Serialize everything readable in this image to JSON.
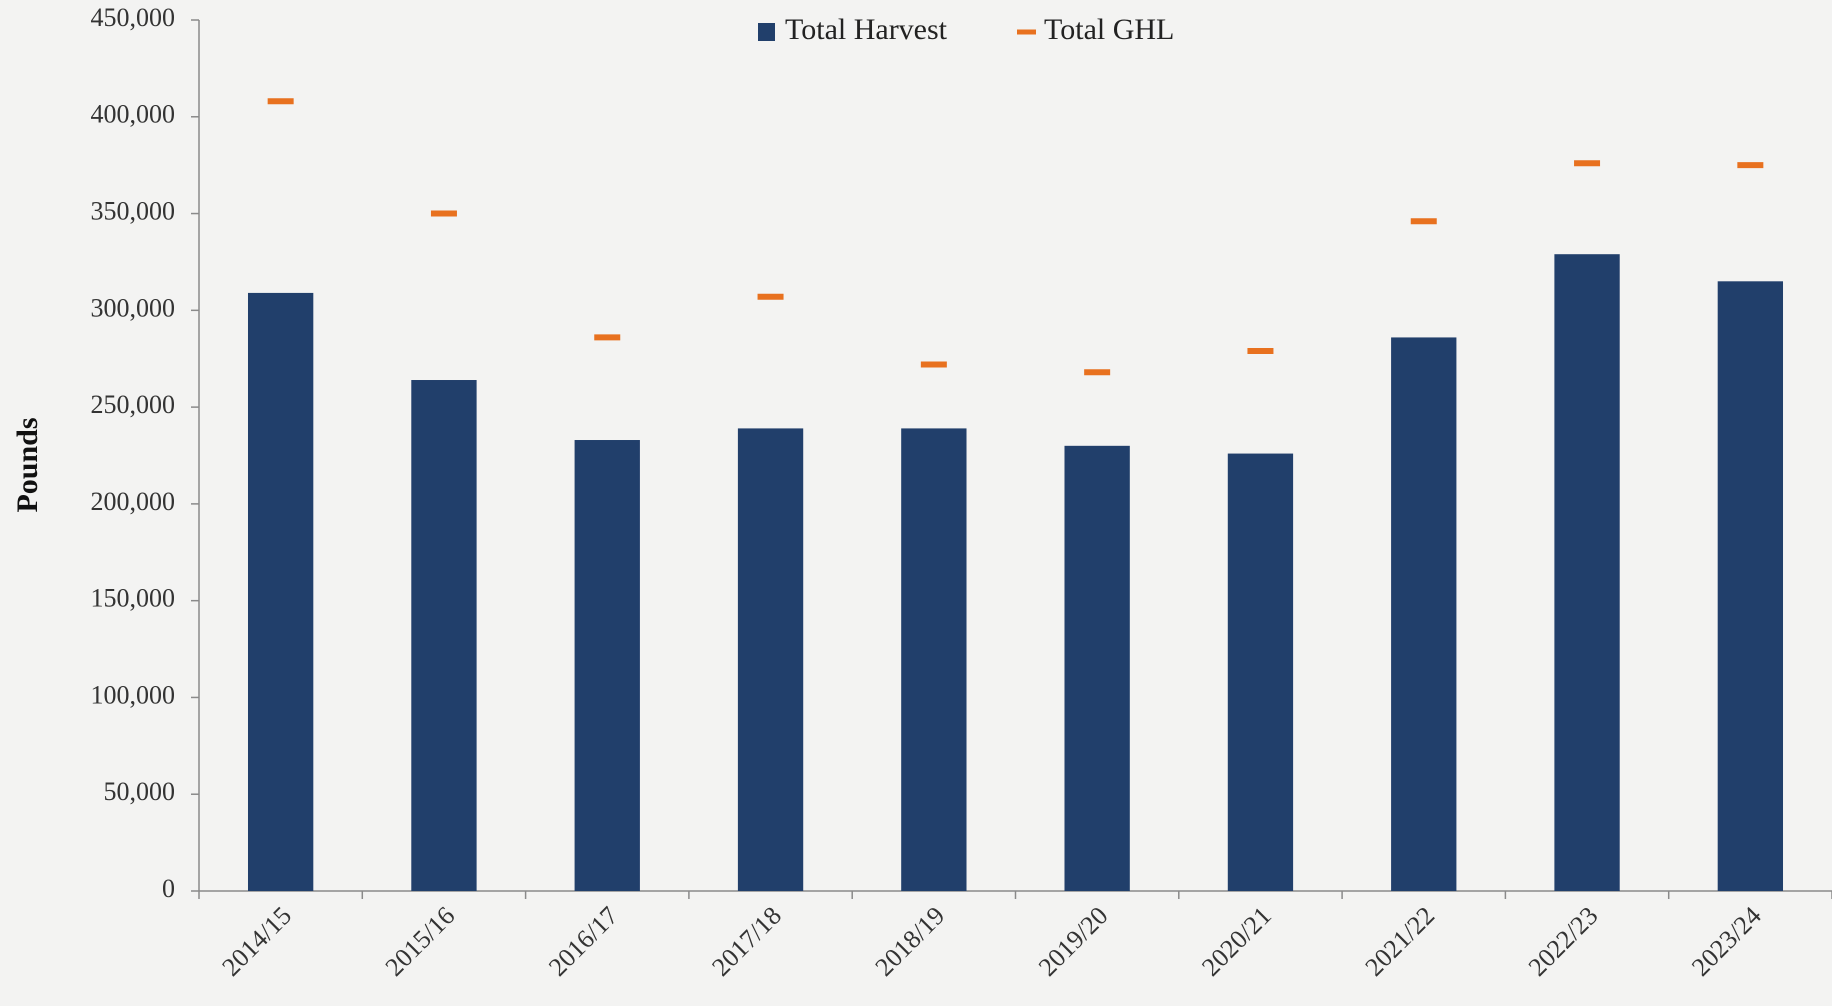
{
  "chart_data": {
    "type": "bar",
    "y_label": "Pounds",
    "categories": [
      "2014/15",
      "2015/16",
      "2016/17",
      "2017/18",
      "2018/19",
      "2019/20",
      "2020/21",
      "2021/22",
      "2022/23",
      "2023/24"
    ],
    "series": [
      {
        "name": "Total Harvest",
        "type": "bar",
        "color": "#213f6b",
        "values": [
          309000,
          264000,
          233000,
          239000,
          239000,
          230000,
          226000,
          286000,
          329000,
          315000
        ]
      },
      {
        "name": "Total GHL",
        "type": "dash",
        "color": "#e8711f",
        "values": [
          408000,
          350000,
          286000,
          307000,
          272000,
          268000,
          279000,
          346000,
          376000,
          375000
        ]
      }
    ],
    "ylim": [
      0,
      450000
    ],
    "yticks": [
      0,
      {
        "value": 50000,
        "label": "50,000"
      },
      {
        "value": 100000,
        "label": "100,000"
      },
      {
        "value": 150000,
        "label": "150,000"
      },
      {
        "value": 200000,
        "label": "200,000"
      },
      {
        "value": 250000,
        "label": "250,000"
      },
      {
        "value": 300000,
        "label": "300,000"
      },
      {
        "value": 350000,
        "label": "350,000"
      },
      {
        "value": 400000,
        "label": "400,000"
      },
      {
        "value": 450000,
        "label": "450,000"
      }
    ],
    "legend": "top",
    "grid": false
  }
}
